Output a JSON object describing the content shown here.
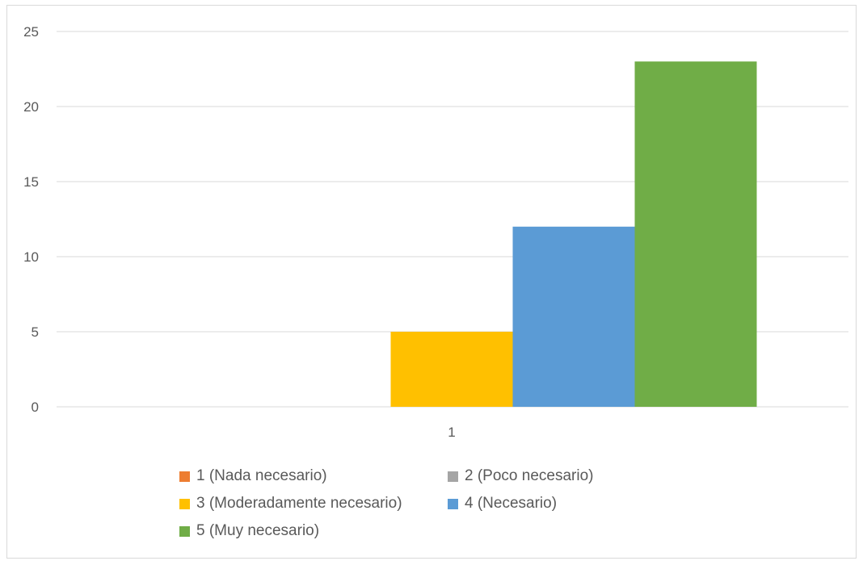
{
  "chart_data": {
    "type": "bar",
    "categories": [
      "1"
    ],
    "series": [
      {
        "name": "1 (Nada necesario)",
        "values": [
          0
        ],
        "color": "#ED7D31"
      },
      {
        "name": "2 (Poco necesario)",
        "values": [
          0
        ],
        "color": "#A5A5A5"
      },
      {
        "name": "3 (Moderadamente necesario)",
        "values": [
          5
        ],
        "color": "#FFC000"
      },
      {
        "name": "4 (Necesario)",
        "values": [
          12
        ],
        "color": "#5B9BD5"
      },
      {
        "name": "5 (Muy necesario)",
        "values": [
          23
        ],
        "color": "#70AD47"
      }
    ],
    "ylim": [
      0,
      25
    ],
    "yticks": [
      "0",
      "5",
      "10",
      "15",
      "20",
      "25"
    ],
    "grid": true,
    "legend_position": "bottom",
    "gridline_color": "#d9d9d9"
  }
}
